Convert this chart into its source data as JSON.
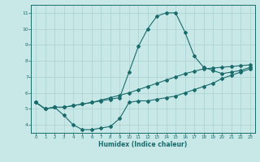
{
  "title": "",
  "xlabel": "Humidex (Indice chaleur)",
  "bg_color": "#c8e8e8",
  "grid_color": "#a8d0d0",
  "line_color": "#1a6b6b",
  "xlim": [
    -0.5,
    23.5
  ],
  "ylim": [
    3.5,
    11.5
  ],
  "xticks": [
    0,
    1,
    2,
    3,
    4,
    5,
    6,
    7,
    8,
    9,
    10,
    11,
    12,
    13,
    14,
    15,
    16,
    17,
    18,
    19,
    20,
    21,
    22,
    23
  ],
  "yticks": [
    4,
    5,
    6,
    7,
    8,
    9,
    10,
    11
  ],
  "line1_x": [
    0,
    1,
    2,
    3,
    4,
    5,
    6,
    7,
    8,
    9,
    10,
    11,
    12,
    13,
    14,
    15,
    16,
    17,
    18,
    19,
    20,
    21,
    22,
    23
  ],
  "line1_y": [
    5.4,
    5.0,
    5.1,
    4.6,
    4.0,
    3.7,
    3.7,
    3.8,
    3.9,
    4.4,
    5.4,
    5.5,
    5.5,
    5.6,
    5.7,
    5.8,
    6.0,
    6.2,
    6.4,
    6.6,
    6.9,
    7.1,
    7.3,
    7.5
  ],
  "line2_x": [
    0,
    1,
    2,
    3,
    4,
    5,
    6,
    7,
    8,
    9,
    10,
    11,
    12,
    13,
    14,
    15,
    16,
    17,
    18,
    19,
    20,
    21,
    22,
    23
  ],
  "line2_y": [
    5.4,
    5.0,
    5.1,
    5.1,
    5.2,
    5.3,
    5.4,
    5.5,
    5.6,
    5.7,
    7.3,
    8.9,
    10.0,
    10.8,
    11.0,
    11.0,
    9.8,
    8.3,
    7.6,
    7.4,
    7.2,
    7.3,
    7.4,
    7.6
  ],
  "line3_x": [
    0,
    1,
    2,
    3,
    4,
    5,
    6,
    7,
    8,
    9,
    10,
    11,
    12,
    13,
    14,
    15,
    16,
    17,
    18,
    19,
    20,
    21,
    22,
    23
  ],
  "line3_y": [
    5.4,
    5.0,
    5.1,
    5.1,
    5.2,
    5.3,
    5.4,
    5.55,
    5.7,
    5.85,
    6.0,
    6.2,
    6.4,
    6.6,
    6.8,
    7.0,
    7.2,
    7.35,
    7.5,
    7.55,
    7.6,
    7.65,
    7.7,
    7.75
  ],
  "marker_size": 2.0,
  "line_width": 0.8
}
